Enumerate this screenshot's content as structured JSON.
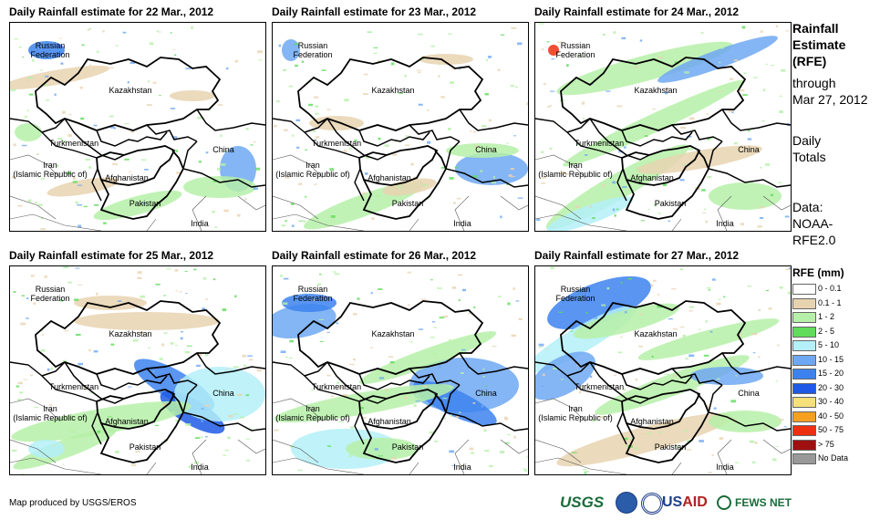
{
  "panels": [
    {
      "title": "Daily Rainfall estimate for 22 Mar., 2012",
      "variant": 0
    },
    {
      "title": "Daily Rainfall estimate for 23 Mar., 2012",
      "variant": 1
    },
    {
      "title": "Daily Rainfall estimate for 24 Mar., 2012",
      "variant": 2
    },
    {
      "title": "Daily Rainfall estimate for 25 Mar., 2012",
      "variant": 3
    },
    {
      "title": "Daily Rainfall estimate for 26 Mar., 2012",
      "variant": 4
    },
    {
      "title": "Daily Rainfall estimate for 27 Mar., 2012",
      "variant": 5
    }
  ],
  "map_labels": {
    "russia_line1": "Russian",
    "russia_line2": "Federation",
    "kazakhstan": "Kazakhstan",
    "turkmenistan": "Turkmenistan",
    "iran_line1": "Iran",
    "iran_line2": "(Islamic Republic of)",
    "afghanistan": "Afghanistan",
    "pakistan": "Pakistan",
    "china": "China",
    "india": "India"
  },
  "side": {
    "title_line1": "Rainfall",
    "title_line2": "Estimate",
    "title_line3": "(RFE)",
    "through": "through",
    "date": "Mar 27, 2012",
    "daily": "Daily",
    "totals": "Totals",
    "data": "Data:",
    "source_line1": "NOAA-",
    "source_line2": "RFE2.0"
  },
  "legend": {
    "title": "RFE (mm)",
    "items": [
      {
        "label": "0 - 0.1",
        "color": "#ffffff"
      },
      {
        "label": "0.1 - 1",
        "color": "#e8d3b0"
      },
      {
        "label": "1 - 2",
        "color": "#b6f0a8"
      },
      {
        "label": "2 - 5",
        "color": "#5fdc5a"
      },
      {
        "label": "5 - 10",
        "color": "#b4f0f8"
      },
      {
        "label": "10 - 15",
        "color": "#6ea8f2"
      },
      {
        "label": "15 - 20",
        "color": "#3c82ee"
      },
      {
        "label": "20 - 30",
        "color": "#1e5ae6"
      },
      {
        "label": "30 - 40",
        "color": "#f6e07a"
      },
      {
        "label": "40 - 50",
        "color": "#f6a020"
      },
      {
        "label": "50 - 75",
        "color": "#ee3010"
      },
      {
        "label": "> 75",
        "color": "#a01010"
      },
      {
        "label": "No Data",
        "color": "#999999"
      }
    ]
  },
  "credit": "Map produced by USGS/EROS",
  "logos": {
    "usgs": "USGS",
    "usaid_us": "US",
    "usaid_aid": "AID",
    "fews": "FEWS NET"
  }
}
